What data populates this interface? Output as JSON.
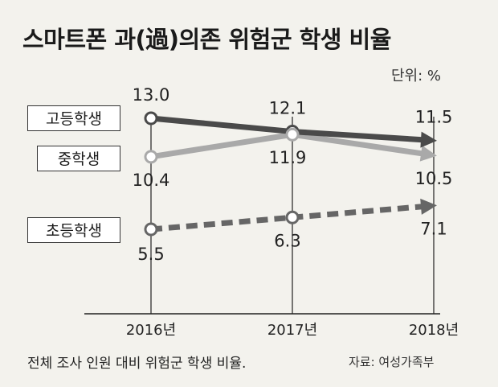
{
  "title": "스마트폰 과(過)의존 위험군 학생 비율",
  "unit": "단위: %",
  "footnote": "전체 조사 인원 대비 위험군 학생 비율.",
  "source": "자료: 여성가족부",
  "chart_data": {
    "type": "line",
    "title": "스마트폰 과(過)의존 위험군 학생 비율",
    "categories": [
      "2016년",
      "2017년",
      "2018년"
    ],
    "series": [
      {
        "name": "고등학생",
        "values": [
          13.0,
          12.1,
          11.5
        ],
        "labels": [
          "13.0",
          "12.1",
          "11.5"
        ],
        "color": "#4a4a4a",
        "style": "solid"
      },
      {
        "name": "중학생",
        "values": [
          10.4,
          11.9,
          10.5
        ],
        "labels": [
          "10.4",
          "11.9",
          "10.5"
        ],
        "color": "#a9a9a9",
        "style": "solid"
      },
      {
        "name": "초등학생",
        "values": [
          5.5,
          6.3,
          7.1
        ],
        "labels": [
          "5.5",
          "6.3",
          "7.1"
        ],
        "color": "#666666",
        "style": "dashed"
      }
    ],
    "xlabel": "",
    "ylabel": "",
    "grid": false,
    "legend": "left"
  }
}
